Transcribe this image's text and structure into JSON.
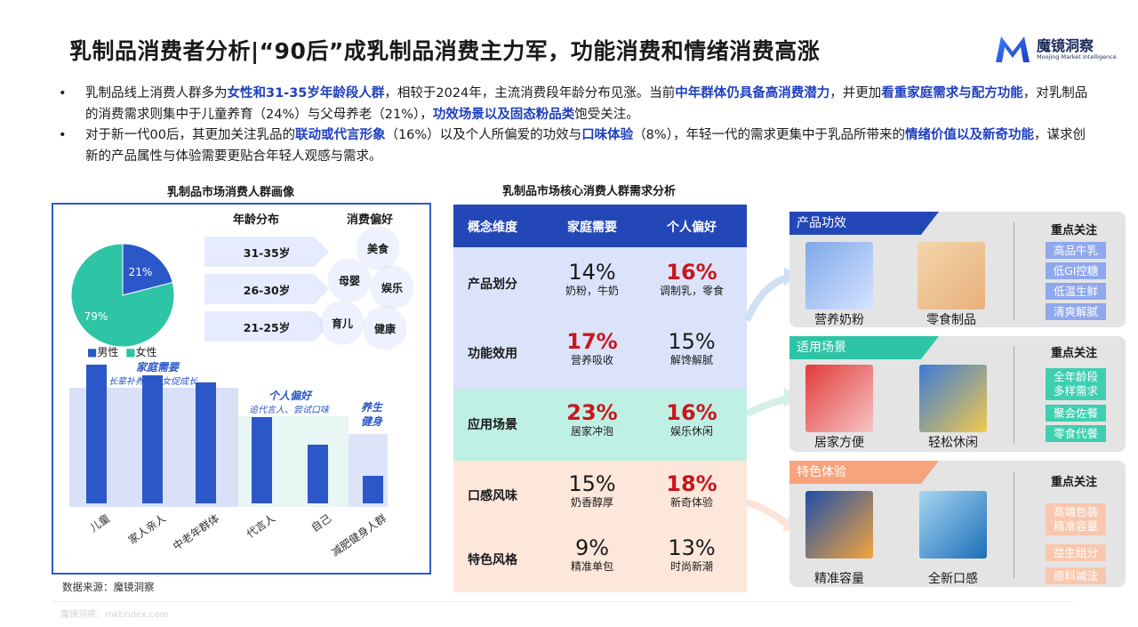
{
  "header": {
    "title": "乳制品消费者分析|“90后”成乳制品消费主力军，功能消费和情绪消费高涨",
    "logo_cn": "魔镜洞察",
    "logo_en": "Moojing Market Intelligence"
  },
  "bullets": [
    {
      "dot": "•",
      "parts": [
        "乳制品线上消费人群多为",
        "女性和31-35岁年龄段人群",
        "，相较于2024年，主流消费段年龄分布见涨。当前",
        "中年群体仍具备高消费潜力",
        "，并更加",
        "看重家庭需求与配方功能",
        "，对乳制品的消费需求则集中于儿童养育（24%）与父母养老（21%），",
        "功效场景以及固态粉品类",
        "饱受关注。"
      ]
    },
    {
      "dot": "•",
      "parts": [
        "对于新一代00后，其更加关注乳品的",
        "联动或代言形象",
        "（16%）以及个人所偏爱的功效与",
        "口味体验",
        "（8%），年轻一代的需求更集中于乳品所带来的",
        "情绪价值以及新奇功能",
        "，谋求创新的产品属性与体验需要更贴合年轻人观感与需求。"
      ]
    }
  ],
  "left_panel": {
    "title": "乳制品市场消费人群画像",
    "age_heading": "年龄分布",
    "pref_heading": "消费偏好",
    "ages": [
      "31-35岁",
      "26-30岁",
      "21-25岁"
    ],
    "prefs": [
      "美食",
      "母婴",
      "娱乐",
      "育儿",
      "健康"
    ],
    "source": "数据来源：魔镜洞察"
  },
  "chart_data": [
    {
      "type": "pie",
      "title": "",
      "labels": [
        "男性",
        "女性"
      ],
      "values": [
        21,
        79
      ],
      "value_labels": [
        "21%",
        "79%"
      ],
      "colors": [
        "#2b57c8",
        "#2ec4a6"
      ],
      "legend": "bottom-left"
    },
    {
      "type": "bar",
      "title": "",
      "categories": [
        "儿童",
        "家人亲人",
        "中老年群体",
        "代言人",
        "自己",
        "减肥健身人群"
      ],
      "values": [
        100,
        92,
        87,
        62,
        42,
        20
      ],
      "ylim": [
        0,
        100
      ],
      "grid": false,
      "color": "#2b57c8",
      "annotations": [
        {
          "title": "家庭需要",
          "subtitle": "长辈补养、子女促成长"
        },
        {
          "title": "个人偏好",
          "subtitle": "追代言人、尝试口味"
        },
        {
          "title": "养生\n健身",
          "subtitle": ""
        }
      ]
    }
  ],
  "table": {
    "title": "乳制品市场核心消费人群需求分析",
    "headers": [
      "概念维度",
      "家庭需要",
      "个人偏好"
    ],
    "rows": [
      {
        "dim": "产品划分",
        "fam_pct": "14%",
        "fam_sub": "奶粉，牛奶",
        "per_pct": "16%",
        "per_sub": "调制乳，零食"
      },
      {
        "dim": "功能效用",
        "fam_pct": "17%",
        "fam_sub": "营养吸收",
        "per_pct": "15%",
        "per_sub": "解馋解腻"
      },
      {
        "dim": "应用场景",
        "fam_pct": "23%",
        "fam_sub": "居家冲泡",
        "per_pct": "16%",
        "per_sub": "娱乐休闲"
      },
      {
        "dim": "口感风味",
        "fam_pct": "15%",
        "fam_sub": "奶香醇厚",
        "per_pct": "18%",
        "per_sub": "新奇体验"
      },
      {
        "dim": "特色风格",
        "fam_pct": "9%",
        "fam_sub": "精准单包",
        "per_pct": "13%",
        "per_sub": "时尚新潮"
      }
    ]
  },
  "right": {
    "focus_heading": "重点关注",
    "panels": [
      {
        "tag": "产品功效",
        "tag_color": "#2447b8",
        "products": [
          "营养奶粉",
          "零食制品"
        ],
        "chips": [
          "高品牛乳",
          "低GI控糖",
          "低温生鲜",
          "清爽解腻"
        ],
        "chip_color": "#8fa8ee"
      },
      {
        "tag": "适用场景",
        "tag_color": "#2ec4a6",
        "products": [
          "居家方便",
          "轻松休闲"
        ],
        "chips": [
          "全年龄段\n多样需求",
          "聚会佐餐",
          "零食代餐"
        ],
        "chip_color": "#3fcfb0"
      },
      {
        "tag": "特色体验",
        "tag_color": "#f6a37e",
        "products": [
          "精准容量",
          "全新口感"
        ],
        "chips": [
          "高端包装\n精准容量",
          "益生组分",
          "原料减法"
        ],
        "chip_color": "#f9c7ad"
      }
    ]
  },
  "footer": {
    "text": "魔镜洞察：mktindex.com"
  }
}
